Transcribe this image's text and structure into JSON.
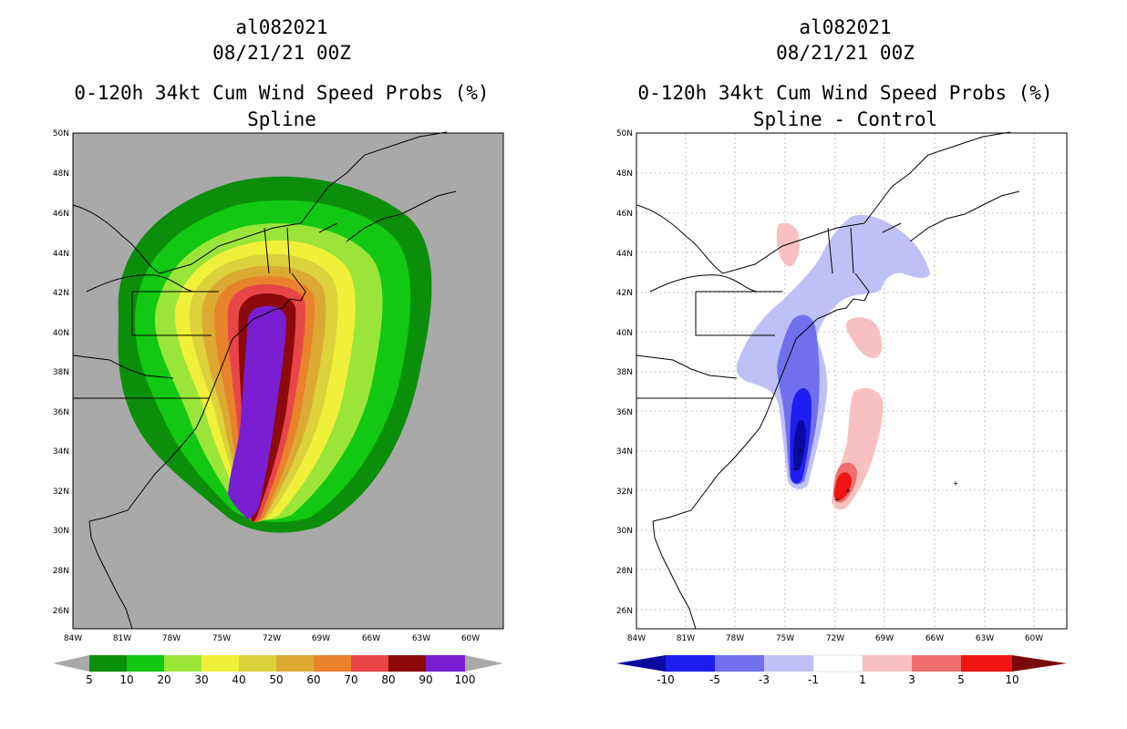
{
  "left": {
    "title_storm": "al082021",
    "title_date": "08/21/21 00Z",
    "title_product": "0-120h 34kt Cum Wind Speed Probs (%)",
    "title_method": "Spline",
    "lat_labels": [
      "50N",
      "48N",
      "46N",
      "44N",
      "42N",
      "40N",
      "38N",
      "36N",
      "34N",
      "32N",
      "30N",
      "28N",
      "26N"
    ],
    "lon_labels": [
      "84W",
      "81W",
      "78W",
      "75W",
      "72W",
      "69W",
      "66W",
      "63W",
      "60W"
    ],
    "colorbar": {
      "colors": [
        "#0b8f0b",
        "#12c812",
        "#9be53a",
        "#f0f03a",
        "#dcd23c",
        "#dcaa32",
        "#e8822c",
        "#e84646",
        "#8c0a0a",
        "#7a1ed2"
      ],
      "labels": [
        "5",
        "10",
        "20",
        "30",
        "40",
        "50",
        "60",
        "70",
        "80",
        "90",
        "100"
      ]
    }
  },
  "right": {
    "title_storm": "al082021",
    "title_date": "08/21/21 00Z",
    "title_product": "0-120h 34kt Cum Wind Speed Probs (%)",
    "title_method": "Spline - Control",
    "lat_labels": [
      "50N",
      "48N",
      "46N",
      "44N",
      "42N",
      "40N",
      "38N",
      "36N",
      "34N",
      "32N",
      "30N",
      "28N",
      "26N"
    ],
    "lon_labels": [
      "84W",
      "81W",
      "78W",
      "75W",
      "72W",
      "69W",
      "66W",
      "63W",
      "60W"
    ],
    "colorbar": {
      "colors": [
        "#0a0aa0",
        "#1e1ef0",
        "#7070ee",
        "#c0c0f8",
        "#ffffff",
        "#f8c0c0",
        "#f07070",
        "#f01414",
        "#780a0a"
      ],
      "labels": [
        "-10",
        "-5",
        "-3",
        "-1",
        "1",
        "3",
        "5",
        "10"
      ]
    }
  }
}
